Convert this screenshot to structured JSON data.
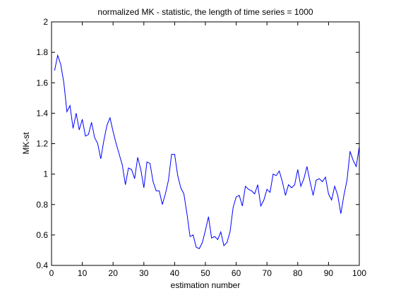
{
  "chart_data": {
    "type": "line",
    "title": "normalized MK - statistic, the length of time series = 1000",
    "xlabel": "estimation number",
    "ylabel": "MK-st",
    "xlim": [
      0,
      100
    ],
    "ylim": [
      0.4,
      2
    ],
    "x_ticks": [
      0,
      10,
      20,
      30,
      40,
      50,
      60,
      70,
      80,
      90,
      100
    ],
    "x_tick_labels": [
      "0",
      "10",
      "20",
      "30",
      "40",
      "50",
      "60",
      "70",
      "80",
      "90",
      "100"
    ],
    "y_ticks": [
      0.4,
      0.6,
      0.8,
      1,
      1.2,
      1.4,
      1.6,
      1.8,
      2
    ],
    "y_tick_labels": [
      "0.4",
      "0.6",
      "0.8",
      "1",
      "1.2",
      "1.4",
      "1.6",
      "1.8",
      "2"
    ],
    "grid": false,
    "legend": "none",
    "line_color": "#0000ff",
    "series": [
      {
        "x": [
          1,
          2,
          3,
          4,
          5,
          6,
          7,
          8,
          9,
          10,
          11,
          12,
          13,
          14,
          15,
          16,
          17,
          18,
          19,
          20,
          21,
          22,
          23,
          24,
          25,
          26,
          27,
          28,
          29,
          30,
          31,
          32,
          33,
          34,
          35,
          36,
          37,
          38,
          39,
          40,
          41,
          42,
          43,
          44,
          45,
          46,
          47,
          48,
          49,
          50,
          51,
          52,
          53,
          54,
          55,
          56,
          57,
          58,
          59,
          60,
          61,
          62,
          63,
          64,
          65,
          66,
          67,
          68,
          69,
          70,
          71,
          72,
          73,
          74,
          75,
          76,
          77,
          78,
          79,
          80,
          81,
          82,
          83,
          84,
          85,
          86,
          87,
          88,
          89,
          90,
          91,
          92,
          93,
          94,
          95,
          96,
          97,
          98,
          99,
          100
        ],
        "values": [
          1.68,
          1.78,
          1.72,
          1.6,
          1.41,
          1.45,
          1.3,
          1.4,
          1.29,
          1.36,
          1.25,
          1.26,
          1.34,
          1.24,
          1.2,
          1.1,
          1.22,
          1.32,
          1.37,
          1.28,
          1.2,
          1.13,
          1.06,
          0.93,
          1.04,
          1.03,
          0.97,
          1.11,
          1.03,
          0.91,
          1.08,
          1.07,
          0.95,
          0.89,
          0.89,
          0.8,
          0.87,
          0.96,
          1.13,
          1.13,
          0.99,
          0.91,
          0.87,
          0.74,
          0.59,
          0.6,
          0.52,
          0.51,
          0.55,
          0.63,
          0.72,
          0.58,
          0.59,
          0.57,
          0.62,
          0.53,
          0.55,
          0.62,
          0.78,
          0.85,
          0.86,
          0.79,
          0.92,
          0.9,
          0.89,
          0.87,
          0.93,
          0.79,
          0.83,
          0.9,
          0.88,
          1.0,
          0.99,
          1.02,
          0.95,
          0.86,
          0.93,
          0.91,
          0.93,
          1.03,
          0.92,
          0.97,
          1.05,
          0.95,
          0.86,
          0.96,
          0.97,
          0.95,
          0.98,
          0.87,
          0.83,
          0.92,
          0.86,
          0.74,
          0.86,
          0.96,
          1.15,
          1.09,
          1.05,
          1.18
        ]
      }
    ]
  }
}
